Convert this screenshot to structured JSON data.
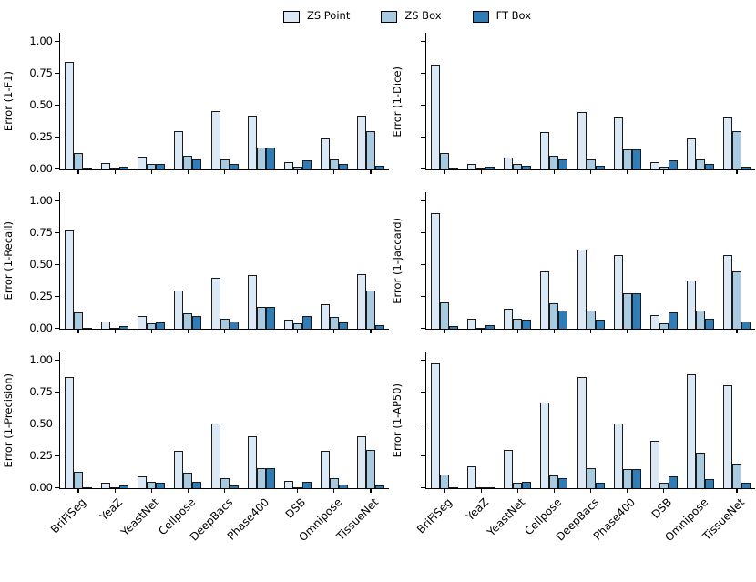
{
  "legend": {
    "items": [
      {
        "name": "zs-point",
        "label": "ZS Point",
        "color": "#dbe8f5"
      },
      {
        "name": "zs-box",
        "label": "ZS Box",
        "color": "#a8cbe2"
      },
      {
        "name": "ft-box",
        "label": "FT Box",
        "color": "#2e7cb8"
      }
    ]
  },
  "axis": {
    "ytick_values": [
      1.0,
      0.75,
      0.5,
      0.25,
      0.0
    ],
    "ytick_labels": [
      "1.00",
      "0.75",
      "0.50",
      "0.25",
      "0.00"
    ],
    "ylim": [
      0,
      1.07
    ],
    "grid": "off",
    "legend_position": "top-center"
  },
  "chart_data": [
    {
      "type": "bar",
      "position": "top-left",
      "ylabel": "Error (1-F1)",
      "show_ytick_labels": true,
      "show_xtick_labels": false,
      "categories": [
        "BriFiSeg",
        "YeaZ",
        "YeastNet",
        "Cellpose",
        "DeepBacs",
        "Phase400",
        "DSB",
        "Omnipose",
        "TissueNet"
      ],
      "series": [
        {
          "name": "ZS Point",
          "values": [
            0.84,
            0.05,
            0.1,
            0.3,
            0.46,
            0.42,
            0.06,
            0.24,
            0.42
          ]
        },
        {
          "name": "ZS Box",
          "values": [
            0.13,
            0.01,
            0.04,
            0.11,
            0.08,
            0.17,
            0.02,
            0.08,
            0.3
          ]
        },
        {
          "name": "FT Box",
          "values": [
            0.01,
            0.02,
            0.04,
            0.08,
            0.04,
            0.17,
            0.07,
            0.04,
            0.03
          ]
        }
      ]
    },
    {
      "type": "bar",
      "position": "top-right",
      "ylabel": "Error (1-Dice)",
      "show_ytick_labels": false,
      "show_xtick_labels": false,
      "categories": [
        "BriFiSeg",
        "YeaZ",
        "YeastNet",
        "Cellpose",
        "DeepBacs",
        "Phase400",
        "DSB",
        "Omnipose",
        "TissueNet"
      ],
      "series": [
        {
          "name": "ZS Point",
          "values": [
            0.82,
            0.04,
            0.09,
            0.29,
            0.45,
            0.41,
            0.06,
            0.24,
            0.41
          ]
        },
        {
          "name": "ZS Box",
          "values": [
            0.13,
            0.01,
            0.04,
            0.11,
            0.08,
            0.16,
            0.02,
            0.08,
            0.3
          ]
        },
        {
          "name": "FT Box",
          "values": [
            0.01,
            0.02,
            0.03,
            0.08,
            0.03,
            0.16,
            0.07,
            0.04,
            0.02
          ]
        }
      ]
    },
    {
      "type": "bar",
      "position": "middle-left",
      "ylabel": "Error (1-Recall)",
      "show_ytick_labels": true,
      "show_xtick_labels": false,
      "categories": [
        "BriFiSeg",
        "YeaZ",
        "YeastNet",
        "Cellpose",
        "DeepBacs",
        "Phase400",
        "DSB",
        "Omnipose",
        "TissueNet"
      ],
      "series": [
        {
          "name": "ZS Point",
          "values": [
            0.77,
            0.06,
            0.1,
            0.3,
            0.4,
            0.42,
            0.07,
            0.19,
            0.43
          ]
        },
        {
          "name": "ZS Box",
          "values": [
            0.13,
            0.01,
            0.04,
            0.12,
            0.08,
            0.17,
            0.04,
            0.09,
            0.3
          ]
        },
        {
          "name": "FT Box",
          "values": [
            0.01,
            0.02,
            0.05,
            0.1,
            0.06,
            0.17,
            0.1,
            0.05,
            0.03
          ]
        }
      ]
    },
    {
      "type": "bar",
      "position": "middle-right",
      "ylabel": "Error (1-Jaccard)",
      "show_ytick_labels": false,
      "show_xtick_labels": false,
      "categories": [
        "BriFiSeg",
        "YeaZ",
        "YeastNet",
        "Cellpose",
        "DeepBacs",
        "Phase400",
        "DSB",
        "Omnipose",
        "TissueNet"
      ],
      "series": [
        {
          "name": "ZS Point",
          "values": [
            0.91,
            0.08,
            0.16,
            0.45,
            0.62,
            0.58,
            0.11,
            0.38,
            0.58
          ]
        },
        {
          "name": "ZS Box",
          "values": [
            0.21,
            0.01,
            0.08,
            0.2,
            0.14,
            0.28,
            0.04,
            0.14,
            0.45
          ]
        },
        {
          "name": "FT Box",
          "values": [
            0.02,
            0.03,
            0.07,
            0.14,
            0.07,
            0.28,
            0.13,
            0.08,
            0.06
          ]
        }
      ]
    },
    {
      "type": "bar",
      "position": "bottom-left",
      "ylabel": "Error (1-Precision)",
      "show_ytick_labels": true,
      "show_xtick_labels": true,
      "categories": [
        "BriFiSeg",
        "YeaZ",
        "YeastNet",
        "Cellpose",
        "DeepBacs",
        "Phase400",
        "DSB",
        "Omnipose",
        "TissueNet"
      ],
      "series": [
        {
          "name": "ZS Point",
          "values": [
            0.87,
            0.04,
            0.09,
            0.29,
            0.51,
            0.41,
            0.06,
            0.29,
            0.41
          ]
        },
        {
          "name": "ZS Box",
          "values": [
            0.13,
            0.01,
            0.05,
            0.12,
            0.08,
            0.16,
            0.01,
            0.08,
            0.3
          ]
        },
        {
          "name": "FT Box",
          "values": [
            0.01,
            0.02,
            0.04,
            0.05,
            0.02,
            0.16,
            0.05,
            0.03,
            0.02
          ]
        }
      ]
    },
    {
      "type": "bar",
      "position": "bottom-right",
      "ylabel": "Error (1-AP50)",
      "show_ytick_labels": false,
      "show_xtick_labels": true,
      "categories": [
        "BriFiSeg",
        "YeaZ",
        "YeastNet",
        "Cellpose",
        "DeepBacs",
        "Phase400",
        "DSB",
        "Omnipose",
        "TissueNet"
      ],
      "series": [
        {
          "name": "ZS Point",
          "values": [
            0.98,
            0.17,
            0.3,
            0.67,
            0.87,
            0.51,
            0.37,
            0.89,
            0.81
          ]
        },
        {
          "name": "ZS Box",
          "values": [
            0.11,
            0.01,
            0.04,
            0.1,
            0.16,
            0.15,
            0.04,
            0.28,
            0.19
          ]
        },
        {
          "name": "FT Box",
          "values": [
            0.01,
            0.01,
            0.05,
            0.08,
            0.04,
            0.15,
            0.09,
            0.07,
            0.04
          ]
        }
      ]
    }
  ]
}
